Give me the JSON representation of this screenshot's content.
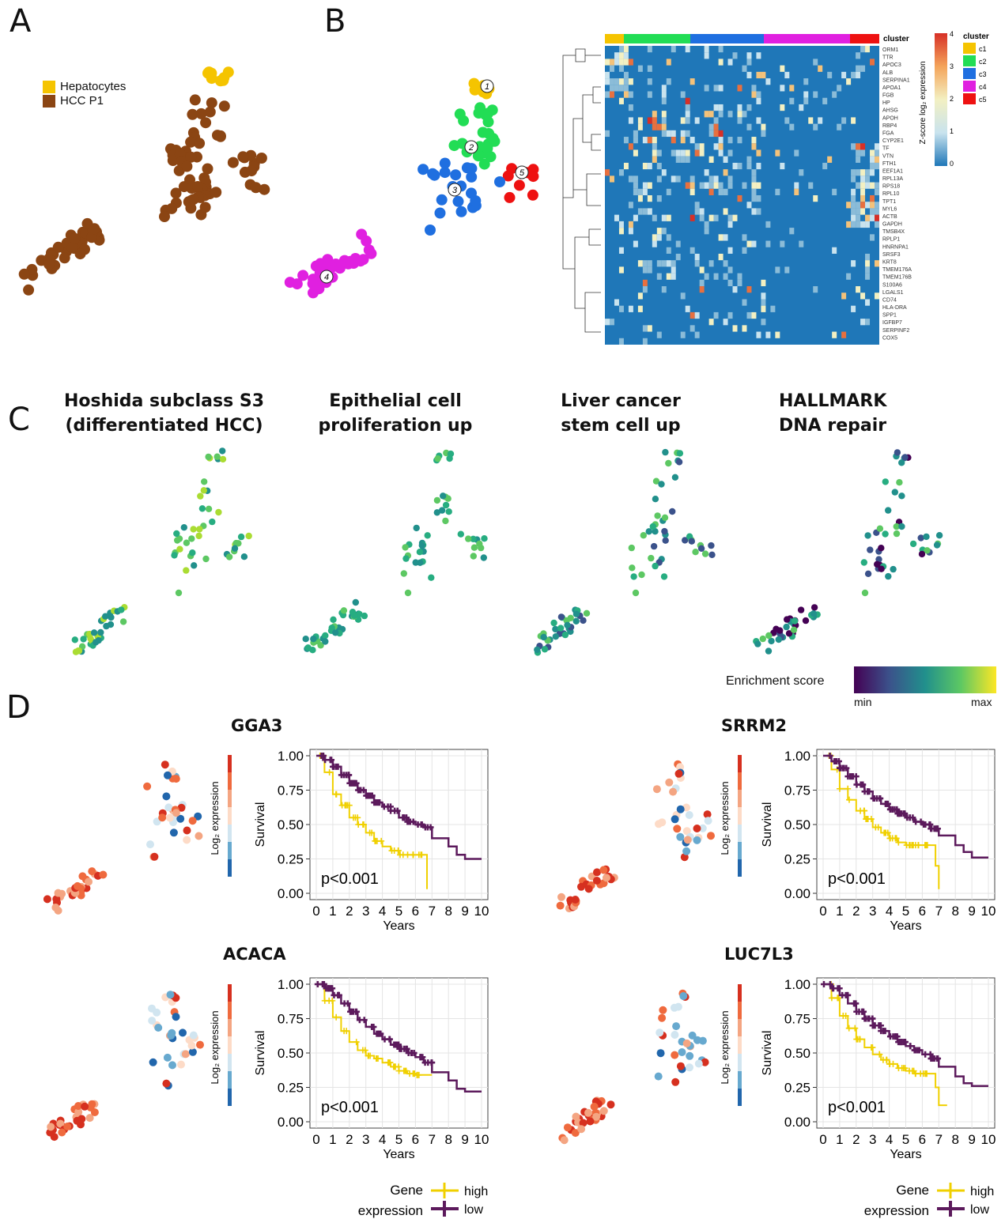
{
  "panel_labels": {
    "a": "A",
    "b": "B",
    "c": "C",
    "d": "D"
  },
  "panel_a": {
    "legend": [
      {
        "label": "Hepatocytes",
        "color": "#F5C400"
      },
      {
        "label": "HCC P1",
        "color": "#8B4513"
      }
    ]
  },
  "panel_b": {
    "cluster_colors": {
      "c1": "#F5C400",
      "c2": "#22DD55",
      "c3": "#1F6FE0",
      "c4": "#E020E0",
      "c5": "#EE1111"
    },
    "cluster_numbers": [
      "1",
      "2",
      "3",
      "4",
      "5"
    ],
    "heatmap": {
      "annotation_label": "cluster",
      "colorbar_title": "Z-score log₂ expression",
      "colorbar_ticks": [
        "4",
        "3",
        "2",
        "1",
        "0"
      ],
      "legend_title": "cluster",
      "legend_entries": [
        "c1",
        "c2",
        "c3",
        "c4",
        "c5"
      ],
      "genes": [
        "ORM1",
        "TTR",
        "APOC3",
        "ALB",
        "SERPINA1",
        "APOA1",
        "FGB",
        "HP",
        "AHSG",
        "APOH",
        "RBP4",
        "FGA",
        "CYP2E1",
        "TF",
        "VTN",
        "FTH1",
        "EEF1A1",
        "RPL13A",
        "RPS18",
        "RPL10",
        "TPT1",
        "MYL6",
        "ACTB",
        "GAPDH",
        "TMSB4X",
        "RPLP1",
        "HNRNPA1",
        "SRSF3",
        "KRT8",
        "TMEM176A",
        "TMEM176B",
        "S100A6",
        "LGALS1",
        "CD74",
        "HLA-DRA",
        "SPP1",
        "IGFBP7",
        "SERPINF2",
        "COX5"
      ]
    }
  },
  "panel_c": {
    "titles": [
      [
        "Hoshida subclass S3",
        "(differentiated HCC)"
      ],
      [
        "Epithelial cell",
        "proliferation up"
      ],
      [
        "Liver cancer",
        "stem cell up"
      ],
      [
        "HALLMARK",
        "DNA repair"
      ]
    ],
    "colorbar": {
      "label": "Enrichment score",
      "min": "min",
      "max": "max"
    }
  },
  "panel_d": {
    "expr_colorbar_label": "Log₂ expression",
    "y_axis_label": "Survival",
    "x_axis_label": "Years",
    "y_ticks": [
      "1.00",
      "0.75",
      "0.50",
      "0.25",
      "0.00"
    ],
    "x_ticks": [
      "0",
      "1",
      "2",
      "3",
      "4",
      "5",
      "6",
      "7",
      "8",
      "9",
      "10"
    ],
    "genes": [
      "GGA3",
      "SRRM2",
      "ACACA",
      "LUC7L3"
    ],
    "pvalues": [
      "p<0.001",
      "p<0.001",
      "p<0.001",
      "p<0.001"
    ],
    "legend": {
      "title_line1": "Gene",
      "title_line2": "expression",
      "high": "high",
      "low": "low"
    },
    "colors": {
      "high": "#F0D000",
      "low": "#5C1A5C"
    }
  },
  "chart_data": [
    {
      "type": "line",
      "title": "GGA3",
      "xlabel": "Years",
      "ylabel": "Survival",
      "xlim": [
        0,
        10
      ],
      "ylim": [
        0,
        1
      ],
      "series": [
        {
          "name": "high",
          "x": [
            0,
            0.5,
            1,
            1.5,
            2,
            2.5,
            3,
            3.5,
            4,
            4.5,
            5,
            5.5,
            6,
            6.5,
            6.7
          ],
          "values": [
            1.0,
            0.88,
            0.72,
            0.64,
            0.55,
            0.5,
            0.44,
            0.38,
            0.34,
            0.31,
            0.28,
            0.28,
            0.28,
            0.28,
            0.03
          ]
        },
        {
          "name": "low",
          "x": [
            0,
            0.5,
            1,
            1.5,
            2,
            2.5,
            3,
            3.5,
            4,
            4.5,
            5,
            5.5,
            6,
            6.5,
            7,
            8,
            8.5,
            9,
            10
          ],
          "values": [
            1.0,
            0.97,
            0.92,
            0.86,
            0.8,
            0.75,
            0.71,
            0.66,
            0.63,
            0.6,
            0.55,
            0.52,
            0.5,
            0.48,
            0.4,
            0.34,
            0.28,
            0.25,
            0.25
          ]
        }
      ],
      "annotation": "p<0.001"
    },
    {
      "type": "line",
      "title": "SRRM2",
      "xlabel": "Years",
      "ylabel": "Survival",
      "xlim": [
        0,
        10
      ],
      "ylim": [
        0,
        1
      ],
      "series": [
        {
          "name": "high",
          "x": [
            0,
            0.5,
            1,
            1.5,
            2,
            2.5,
            3,
            3.5,
            4,
            4.5,
            5,
            5.5,
            6,
            6.5,
            6.8,
            7.0
          ],
          "values": [
            1.0,
            0.9,
            0.76,
            0.68,
            0.6,
            0.54,
            0.48,
            0.44,
            0.4,
            0.37,
            0.35,
            0.35,
            0.35,
            0.35,
            0.2,
            0.03
          ]
        },
        {
          "name": "low",
          "x": [
            0,
            0.5,
            1,
            1.5,
            2,
            2.5,
            3,
            3.5,
            4,
            4.5,
            5,
            5.5,
            6,
            6.5,
            7,
            8,
            8.5,
            9,
            10
          ],
          "values": [
            1.0,
            0.96,
            0.91,
            0.85,
            0.79,
            0.74,
            0.69,
            0.65,
            0.61,
            0.58,
            0.55,
            0.52,
            0.5,
            0.47,
            0.42,
            0.35,
            0.3,
            0.26,
            0.26
          ]
        }
      ],
      "annotation": "p<0.001"
    },
    {
      "type": "line",
      "title": "ACACA",
      "xlabel": "Years",
      "ylabel": "Survival",
      "xlim": [
        0,
        10
      ],
      "ylim": [
        0,
        1
      ],
      "series": [
        {
          "name": "high",
          "x": [
            0,
            0.5,
            1,
            1.5,
            2,
            2.5,
            3,
            3.5,
            4,
            4.5,
            5,
            5.5,
            6,
            6.5,
            7
          ],
          "values": [
            1.0,
            0.88,
            0.76,
            0.66,
            0.58,
            0.52,
            0.48,
            0.46,
            0.43,
            0.4,
            0.37,
            0.35,
            0.34,
            0.34,
            0.34
          ]
        },
        {
          "name": "low",
          "x": [
            0,
            0.5,
            1,
            1.5,
            2,
            2.5,
            3,
            3.5,
            4,
            4.5,
            5,
            5.5,
            6,
            6.5,
            7,
            8,
            8.5,
            9,
            10
          ],
          "values": [
            1.0,
            0.97,
            0.92,
            0.86,
            0.8,
            0.74,
            0.69,
            0.64,
            0.6,
            0.56,
            0.53,
            0.5,
            0.47,
            0.43,
            0.36,
            0.3,
            0.24,
            0.22,
            0.22
          ]
        }
      ],
      "annotation": "p<0.001"
    },
    {
      "type": "line",
      "title": "LUC7L3",
      "xlabel": "Years",
      "ylabel": "Survival",
      "xlim": [
        0,
        10
      ],
      "ylim": [
        0,
        1
      ],
      "series": [
        {
          "name": "high",
          "x": [
            0,
            0.5,
            1,
            1.5,
            2,
            2.5,
            3,
            3.5,
            4,
            4.5,
            5,
            5.5,
            6,
            6.5,
            6.8,
            7,
            7.5
          ],
          "values": [
            1.0,
            0.9,
            0.77,
            0.68,
            0.6,
            0.54,
            0.49,
            0.45,
            0.42,
            0.39,
            0.37,
            0.35,
            0.35,
            0.35,
            0.25,
            0.12,
            0.12
          ]
        },
        {
          "name": "low",
          "x": [
            0,
            0.5,
            1,
            1.5,
            2,
            2.5,
            3,
            3.5,
            4,
            4.5,
            5,
            5.5,
            6,
            6.5,
            7,
            8,
            8.5,
            9,
            10
          ],
          "values": [
            1.0,
            0.97,
            0.92,
            0.86,
            0.8,
            0.75,
            0.7,
            0.66,
            0.62,
            0.58,
            0.55,
            0.52,
            0.49,
            0.46,
            0.4,
            0.33,
            0.28,
            0.26,
            0.26
          ]
        }
      ],
      "annotation": "p<0.001"
    }
  ]
}
